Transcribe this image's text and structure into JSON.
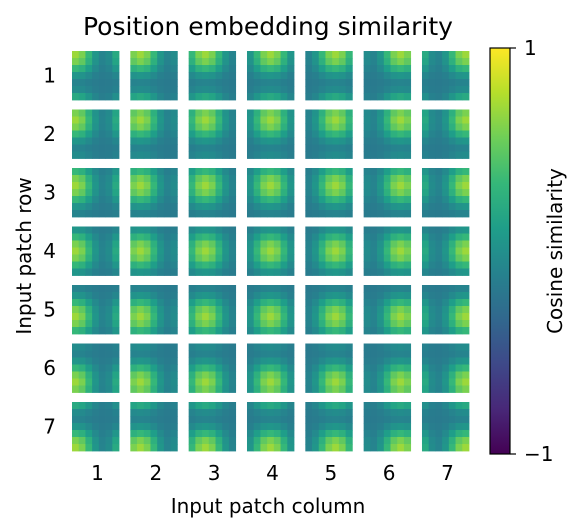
{
  "chart_data": {
    "type": "heatmap",
    "title": "Position embedding similarity",
    "xlabel": "Input patch column",
    "ylabel": "Input patch row",
    "rows": [
      "1",
      "2",
      "3",
      "4",
      "5",
      "6",
      "7"
    ],
    "cols": [
      "1",
      "2",
      "3",
      "4",
      "5",
      "6",
      "7"
    ],
    "subgrid_size": 7,
    "colorbar": {
      "label": "Cosine similarity",
      "ticks": [
        {
          "value": 1,
          "label": "1"
        },
        {
          "value": -1,
          "label": "−1"
        }
      ],
      "vmin": -1,
      "vmax": 1,
      "colormap": "viridis"
    },
    "grid": false
  },
  "colors": {
    "background": "#ffffff",
    "text": "#000000",
    "viridis_stops": [
      "#440154",
      "#482878",
      "#3e4989",
      "#31688e",
      "#26828e",
      "#1f9e89",
      "#35b779",
      "#6ece58",
      "#b5de2b",
      "#fde725"
    ]
  }
}
